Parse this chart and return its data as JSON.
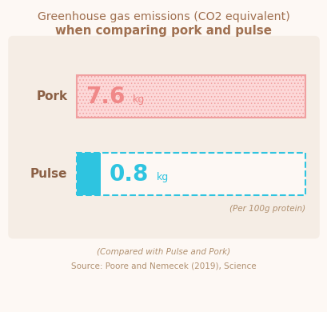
{
  "bg_color": "#fdf8f4",
  "panel_color": "#f5ede5",
  "title_line1_bold": "Greenhouse gas emissions",
  "title_line1_normal": " (CO2 equivalent)",
  "title_line2": "when comparing pork and pulse",
  "title_color": "#a07050",
  "pork_value": 7.6,
  "pulse_value": 0.8,
  "max_value": 7.6,
  "pork_label": "Pork",
  "pulse_label": "Pulse",
  "pork_fill": "#fcd8d8",
  "pork_edge": "#f0a0a0",
  "pork_hatch_color": "#f0b0b0",
  "pork_text_color": "#f08888",
  "pulse_fill": "#2ec4e0",
  "pulse_dash_color": "#2ec4e0",
  "pulse_text_color": "#2ec4e0",
  "label_color": "#8b6045",
  "subtext_color": "#b09070",
  "per_protein": "(Per 100g protein)",
  "footnote1": "(Compared with Pulse and Pork)",
  "footnote2": "Source: Poore and Nemecek (2019), Science"
}
